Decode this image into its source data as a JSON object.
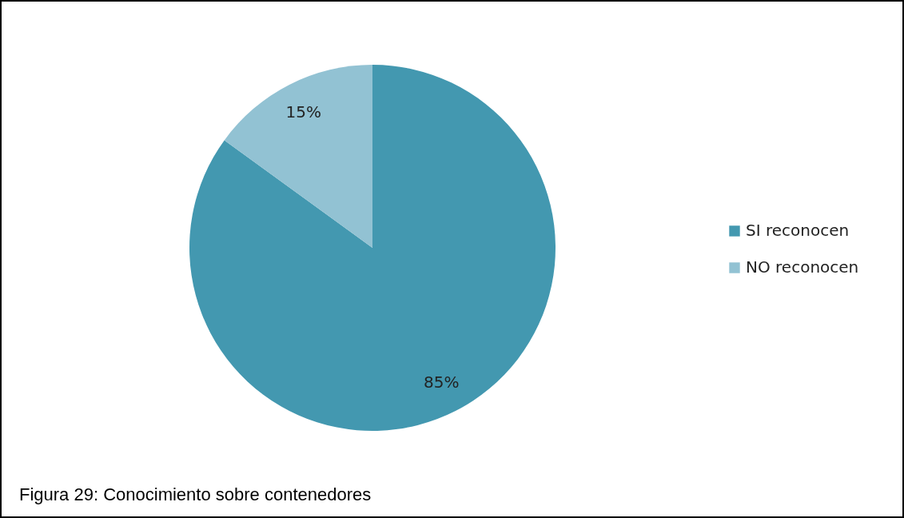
{
  "chart_data": {
    "type": "pie",
    "categories": [
      "SI reconocen",
      "NO reconocen"
    ],
    "values": [
      85,
      15
    ],
    "colors": [
      "#4398b0",
      "#92c2d3"
    ],
    "value_labels": [
      "85%",
      "15%"
    ],
    "legend": "right",
    "annotations": [
      "Figura 29: Conocimiento sobre contenedores"
    ]
  }
}
